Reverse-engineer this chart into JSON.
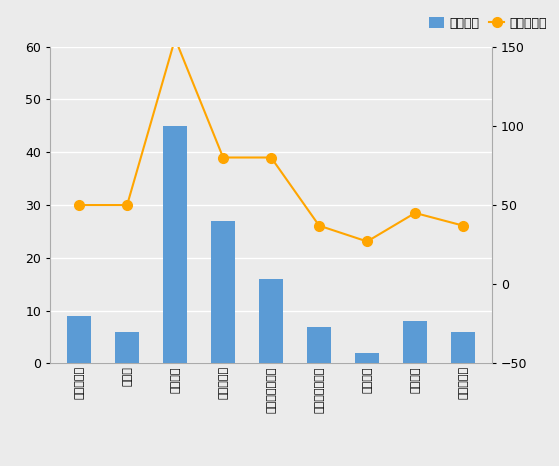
{
  "categories": [
    "設計・企画",
    "プレス",
    "切削加工",
    "研削・研磨",
    "精密・特殊加工",
    "溶接・結合加工",
    "表面処理",
    "機械組立",
    "測定・検査"
  ],
  "bar_values": [
    9,
    6,
    45,
    27,
    16,
    7,
    2,
    8,
    6
  ],
  "line_values_right": [
    50,
    50,
    155,
    80,
    80,
    37,
    27,
    45,
    37
  ],
  "bar_color": "#5b9bd5",
  "line_color": "#ffa500",
  "legend_labels": [
    "企業延数",
    "技術者延数"
  ],
  "ylim_left": [
    0,
    60
  ],
  "ylim_right": [
    -50,
    150
  ],
  "yticks_left": [
    0,
    10,
    20,
    30,
    40,
    50,
    60
  ],
  "yticks_right": [
    -50,
    0,
    50,
    100,
    150
  ],
  "background_color": "#ebebeb",
  "bar_width": 0.5
}
